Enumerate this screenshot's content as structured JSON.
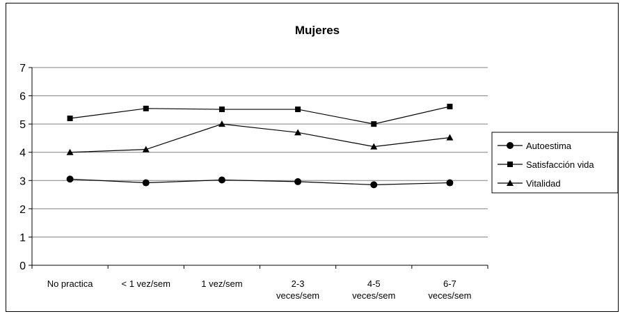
{
  "chart_data": {
    "type": "line",
    "title": "Mujeres",
    "xlabel": "",
    "ylabel": "",
    "categories": [
      [
        "No practica"
      ],
      [
        "< 1 vez/sem"
      ],
      [
        "1 vez/sem"
      ],
      [
        "2-3",
        "veces/sem"
      ],
      [
        "4-5",
        "veces/sem"
      ],
      [
        "6-7",
        "veces/sem"
      ]
    ],
    "ylim": [
      0,
      7
    ],
    "yticks": [
      "0",
      "1",
      "2",
      "3",
      "4",
      "5",
      "6",
      "7"
    ],
    "grid": true,
    "legend_position": "right",
    "series": [
      {
        "name": "Autoestima",
        "marker": "circle",
        "color": "#000000",
        "values": [
          3.05,
          2.92,
          3.02,
          2.96,
          2.85,
          2.92
        ]
      },
      {
        "name": "Satisfacción vida",
        "marker": "square",
        "color": "#000000",
        "values": [
          5.2,
          5.55,
          5.52,
          5.52,
          5.0,
          5.62
        ]
      },
      {
        "name": "Vitalidad",
        "marker": "triangle",
        "color": "#000000",
        "values": [
          4.0,
          4.1,
          5.0,
          4.7,
          4.2,
          4.52
        ]
      }
    ]
  }
}
